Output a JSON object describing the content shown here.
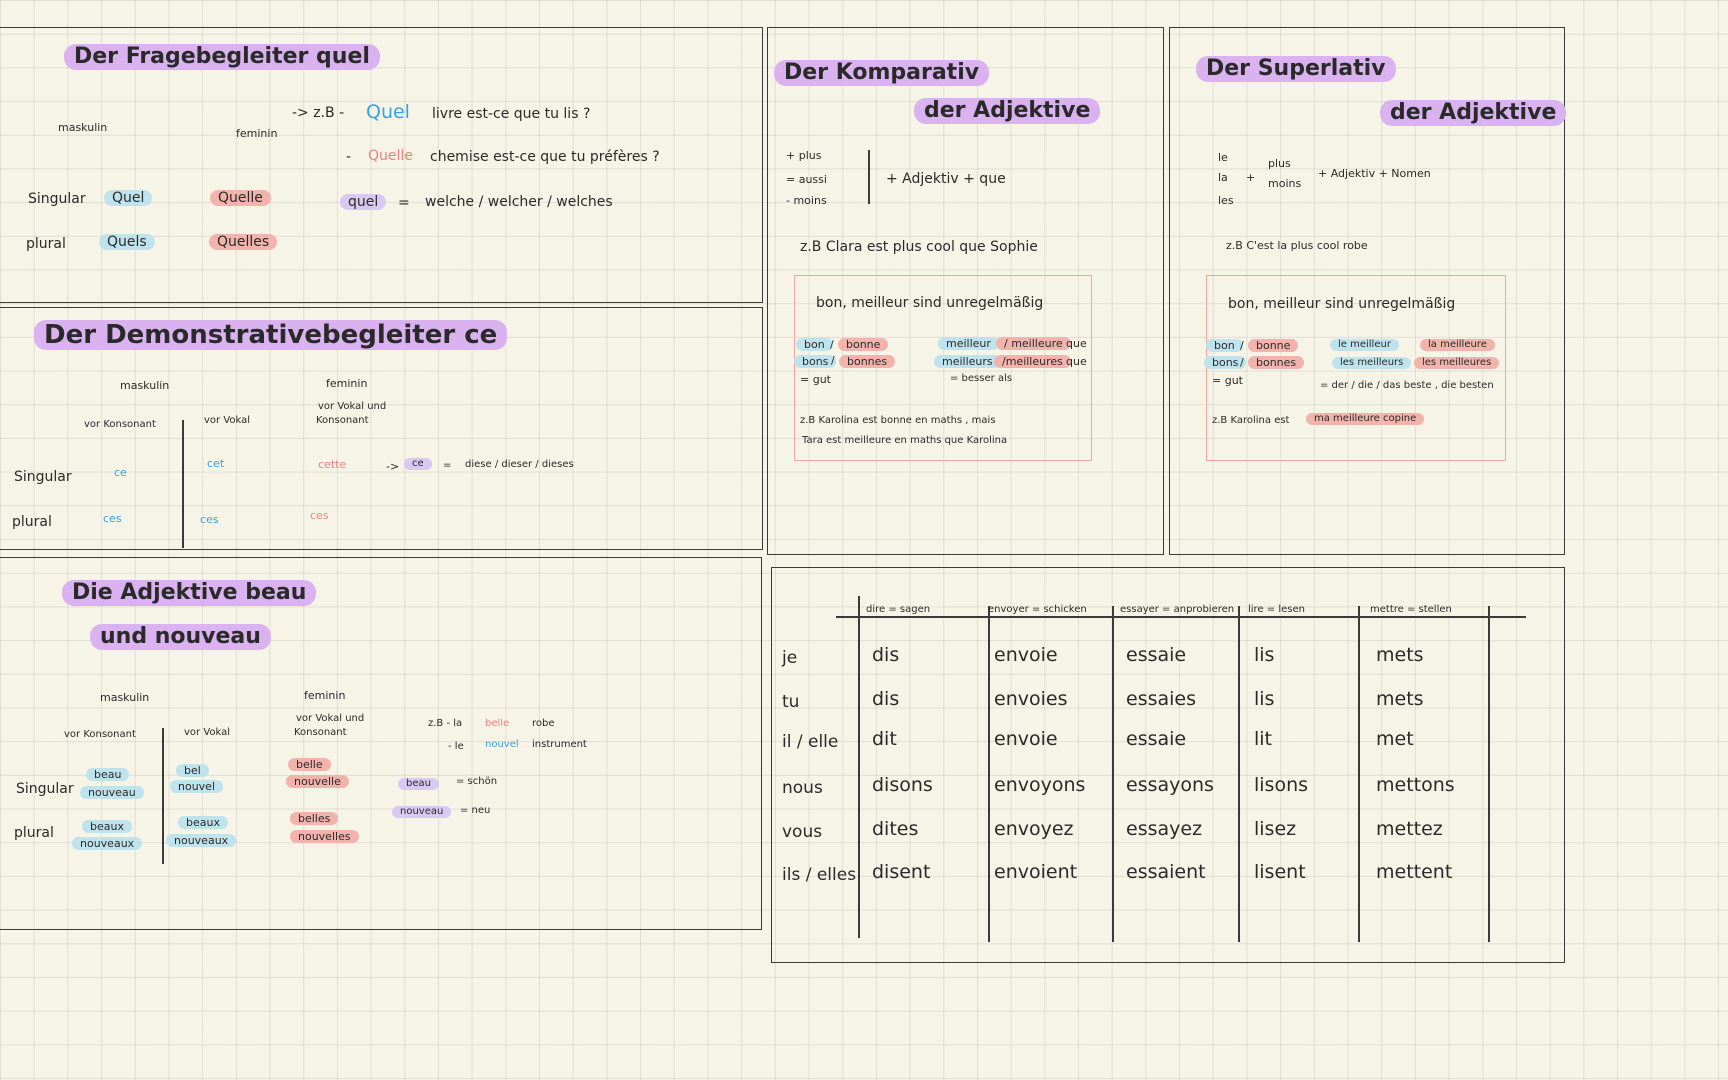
{
  "quel": {
    "title": "Der Fragebegleiter quel",
    "maskulin": "maskulin",
    "feminin": "feminin",
    "ex_prefix": "-> z.B -",
    "ex1_q": "Quel",
    "ex1_rest": "livre est-ce que tu lis ?",
    "ex2_dash": "-",
    "ex2_q": "Quelle",
    "ex2_rest": "chemise est-ce que tu préfères ?",
    "singular": "Singular",
    "plural": "plural",
    "sg_m": "Quel",
    "sg_f": "Quelle",
    "pl_m": "Quels",
    "pl_f": "Quelles",
    "eq_word": "quel",
    "eq_sign": "=",
    "eq_def": "welche / welcher / welches"
  },
  "ce": {
    "title": "Der Demonstrativebegleiter ce",
    "maskulin": "maskulin",
    "feminin": "feminin",
    "vor_kons": "vor Konsonant",
    "vor_vokal": "vor Vokal",
    "vor_vokal_und": "vor Vokal und",
    "konsonant": "Konsonant",
    "singular": "Singular",
    "plural": "plural",
    "sg_m1": "ce",
    "sg_m2": "cet",
    "sg_f": "cette",
    "pl_m1": "ces",
    "pl_m2": "ces",
    "pl_f": "ces",
    "arrow": "->",
    "tag": "ce",
    "eq": "=",
    "def": "diese / dieser / dieses"
  },
  "beau": {
    "title1": "Die Adjektive beau",
    "title2": "und nouveau",
    "maskulin": "maskulin",
    "feminin": "feminin",
    "vor_kons": "vor Konsonant",
    "vor_vokal": "vor Vokal",
    "vor_vokal_und": "vor Vokal und",
    "konsonant": "Konsonant",
    "singular": "Singular",
    "plural": "plural",
    "sg_m1a": "beau",
    "sg_m1b": "nouveau",
    "sg_m2a": "bel",
    "sg_m2b": "nouvel",
    "sg_fa": "belle",
    "sg_fb": "nouvelle",
    "pl_m1a": "beaux",
    "pl_m1b": "nouveaux",
    "pl_m2a": "beaux",
    "pl_m2b": "nouveaux",
    "pl_fa": "belles",
    "pl_fb": "nouvelles",
    "ex1_pre": "z.B - la",
    "ex1_word": "belle",
    "ex1_post": "robe",
    "ex2_pre": "- le",
    "ex2_word": "nouvel",
    "ex2_post": "instrument",
    "tag1": "beau",
    "tag1_def": "= schön",
    "tag2": "nouveau",
    "tag2_def": "= neu"
  },
  "komp": {
    "title1": "Der Komparativ",
    "title2": "der Adjektive",
    "plus": "+ plus",
    "aussi": "= aussi",
    "moins": "- moins",
    "formula": "+ Adjektiv + que",
    "example": "z.B Clara est plus cool que Sophie",
    "irr_head": "bon, meilleur sind unregelmäßig",
    "bon": "bon",
    "bonne": "bonne",
    "bons": "bons",
    "bonnes": "bonnes",
    "gut": "= gut",
    "meilleur": "meilleur",
    "meilleure": "/ meilleure",
    "que1": "que",
    "meilleurs": "meilleurs",
    "meilleures": "/meilleures",
    "que2": "que",
    "besser": "= besser als",
    "ex1": "z.B Karolina est bonne en maths , mais",
    "ex2": "Tara est meilleure en maths que Karolina"
  },
  "sup": {
    "title1": "Der Superlativ",
    "title2": "der Adjektive",
    "le": "le",
    "la": "la",
    "les": "les",
    "plus_sign": "+",
    "plus": "plus",
    "moins": "moins",
    "formula": "+ Adjektiv + Nomen",
    "example": "z.B C'est la plus cool robe",
    "irr_head": "bon, meilleur sind unregelmäßig",
    "bon": "bon",
    "bonne": "bonne",
    "bons": "bons",
    "bonnes": "bonnes",
    "gut": "= gut",
    "le_meilleur": "le meilleur",
    "la_meilleure": "la meilleure",
    "les_meilleurs": "les meilleurs",
    "les_meilleures": "les meilleures",
    "def": "= der / die / das beste , die besten",
    "ex_pre": "z.B Karolina est",
    "ex_tag": "ma meilleure copine"
  },
  "verbs": {
    "headers": [
      "dire = sagen",
      "envoyer = schicken",
      "essayer = anprobieren",
      "lire = lesen",
      "mettre = stellen"
    ],
    "pronouns": [
      "je",
      "tu",
      "il / elle",
      "nous",
      "vous",
      "ils / elles"
    ],
    "rows": [
      [
        "dis",
        "envoie",
        "essaie",
        "lis",
        "mets"
      ],
      [
        "dis",
        "envoies",
        "essaies",
        "lis",
        "mets"
      ],
      [
        "dit",
        "envoie",
        "essaie",
        "lit",
        "met"
      ],
      [
        "disons",
        "envoyons",
        "essayons",
        "lisons",
        "mettons"
      ],
      [
        "dites",
        "envoyez",
        "essayez",
        "lisez",
        "mettez"
      ],
      [
        "disent",
        "envoient",
        "essaient",
        "lisent",
        "mettent"
      ]
    ]
  }
}
